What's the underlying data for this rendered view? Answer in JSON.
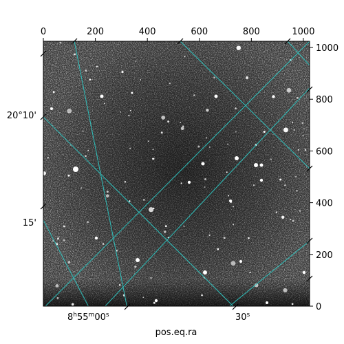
{
  "chart_data": {
    "type": "astronomical-image",
    "xlabel": "pos.eq.ra",
    "ylabel": "",
    "pixel_axes": {
      "top_ticks": [
        "0",
        "200",
        "400",
        "600",
        "800",
        "1000"
      ],
      "top_tick_values": [
        0,
        200,
        400,
        600,
        800,
        1000
      ],
      "right_ticks": [
        "0",
        "200",
        "400",
        "600",
        "800",
        "1000"
      ],
      "right_tick_values": [
        0,
        200,
        400,
        600,
        800,
        1000
      ],
      "range": [
        0,
        1024
      ]
    },
    "world_axes": {
      "ra_ticks": [
        {
          "base": "8",
          "h": "h",
          "m55": "55",
          "m": "m",
          "s00": "00",
          "s": "s"
        },
        {
          "label": "30",
          "s": "s"
        }
      ],
      "dec_ticks": [
        "20°10'",
        "15'"
      ]
    },
    "grid": true,
    "grid_color": "#2ec4c0",
    "colormap": "gray"
  }
}
